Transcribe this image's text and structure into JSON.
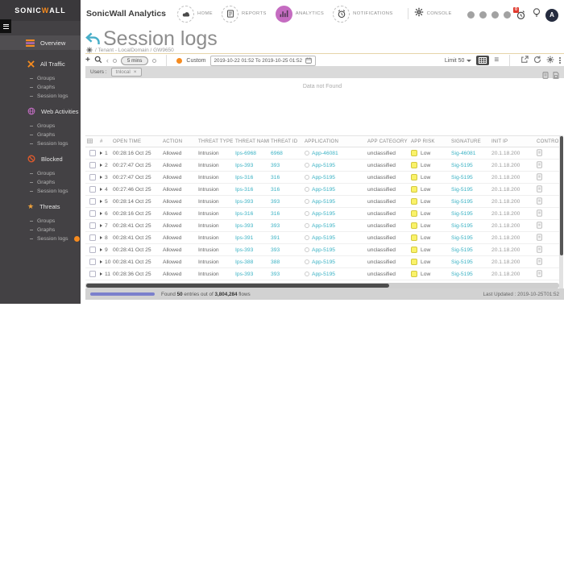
{
  "sidebar": {
    "logo": {
      "pre": "SONIC",
      "w": "W",
      "post": "ALL"
    },
    "overview_label": "Overview",
    "sections": [
      {
        "label": "All Traffic",
        "items": [
          "Groups",
          "Graphs",
          "Session logs"
        ]
      },
      {
        "label": "Web Activities",
        "items": [
          "Groups",
          "Graphs",
          "Session logs"
        ]
      },
      {
        "label": "Blocked",
        "items": [
          "Groups",
          "Graphs",
          "Session logs"
        ]
      },
      {
        "label": "Threats",
        "items": [
          "Groups",
          "Graphs",
          "Session logs"
        ],
        "active_item": "Session logs"
      }
    ]
  },
  "header": {
    "app_title": "SonicWall Analytics",
    "nav": [
      {
        "label": "HOME"
      },
      {
        "label": "REPORTS"
      },
      {
        "label": "ANALYTICS"
      },
      {
        "label": "NOTIFICATIONS"
      },
      {
        "label": "CONSOLE"
      }
    ],
    "notification_badge": "0",
    "avatar_initial": "A"
  },
  "page": {
    "title": "Session logs",
    "breadcrumb": "/ Tenant - LocalDomain / GW9650"
  },
  "toolbar": {
    "interval": "5 mins",
    "mode_label": "Custom",
    "date_range": "2019-10-22 01:52 To 2019-10-25 01:52",
    "limit_label": "Limit 50"
  },
  "filter_bar": {
    "label": "Users :",
    "chip": "tnlocal",
    "chip_remove": "×"
  },
  "empty_state": {
    "message": "Data not Found"
  },
  "table": {
    "columns": [
      "",
      "#",
      "OPEN TIME",
      "ACTION",
      "THREAT TYPE",
      "THREAT NAME",
      "THREAT ID",
      "APPLICATION",
      "APP CATEGORY",
      "APP RISK",
      "SIGNATURE",
      "INIT IP",
      "CONTRO..."
    ],
    "rows": [
      {
        "n": "1",
        "time": "00:28:16 Oct 25",
        "action": "Allowed",
        "threat_type": "Intrusion",
        "threat_name": "Ips-6968",
        "threat_id": "6968",
        "application": "App-46081",
        "app_category": "unclassified",
        "app_risk": "Low",
        "signature": "Sig-46081",
        "init_ip": "20.1.18.200"
      },
      {
        "n": "2",
        "time": "00:27:47 Oct 25",
        "action": "Allowed",
        "threat_type": "Intrusion",
        "threat_name": "Ips-393",
        "threat_id": "393",
        "application": "App-5195",
        "app_category": "unclassified",
        "app_risk": "Low",
        "signature": "Sig-5195",
        "init_ip": "20.1.18.200"
      },
      {
        "n": "3",
        "time": "00:27:47 Oct 25",
        "action": "Allowed",
        "threat_type": "Intrusion",
        "threat_name": "Ips-316",
        "threat_id": "316",
        "application": "App-5195",
        "app_category": "unclassified",
        "app_risk": "Low",
        "signature": "Sig-5195",
        "init_ip": "20.1.18.200"
      },
      {
        "n": "4",
        "time": "00:27:46 Oct 25",
        "action": "Allowed",
        "threat_type": "Intrusion",
        "threat_name": "Ips-316",
        "threat_id": "316",
        "application": "App-5195",
        "app_category": "unclassified",
        "app_risk": "Low",
        "signature": "Sig-5195",
        "init_ip": "20.1.18.200"
      },
      {
        "n": "5",
        "time": "00:28:14 Oct 25",
        "action": "Allowed",
        "threat_type": "Intrusion",
        "threat_name": "Ips-393",
        "threat_id": "393",
        "application": "App-5195",
        "app_category": "unclassified",
        "app_risk": "Low",
        "signature": "Sig-5195",
        "init_ip": "20.1.18.200"
      },
      {
        "n": "6",
        "time": "00:28:16 Oct 25",
        "action": "Allowed",
        "threat_type": "Intrusion",
        "threat_name": "Ips-316",
        "threat_id": "316",
        "application": "App-5195",
        "app_category": "unclassified",
        "app_risk": "Low",
        "signature": "Sig-5195",
        "init_ip": "20.1.18.200"
      },
      {
        "n": "7",
        "time": "00:28:41 Oct 25",
        "action": "Allowed",
        "threat_type": "Intrusion",
        "threat_name": "Ips-393",
        "threat_id": "393",
        "application": "App-5195",
        "app_category": "unclassified",
        "app_risk": "Low",
        "signature": "Sig-5195",
        "init_ip": "20.1.18.200"
      },
      {
        "n": "8",
        "time": "00:28:41 Oct 25",
        "action": "Allowed",
        "threat_type": "Intrusion",
        "threat_name": "Ips-391",
        "threat_id": "391",
        "application": "App-5195",
        "app_category": "unclassified",
        "app_risk": "Low",
        "signature": "Sig-5195",
        "init_ip": "20.1.18.200"
      },
      {
        "n": "9",
        "time": "00:28:41 Oct 25",
        "action": "Allowed",
        "threat_type": "Intrusion",
        "threat_name": "Ips-393",
        "threat_id": "393",
        "application": "App-5195",
        "app_category": "unclassified",
        "app_risk": "Low",
        "signature": "Sig-5195",
        "init_ip": "20.1.18.200"
      },
      {
        "n": "10",
        "time": "00:28:41 Oct 25",
        "action": "Allowed",
        "threat_type": "Intrusion",
        "threat_name": "Ips-388",
        "threat_id": "388",
        "application": "App-5195",
        "app_category": "unclassified",
        "app_risk": "Low",
        "signature": "Sig-5195",
        "init_ip": "20.1.18.200"
      },
      {
        "n": "11",
        "time": "00:28:36 Oct 25",
        "action": "Allowed",
        "threat_type": "Intrusion",
        "threat_name": "Ips-393",
        "threat_id": "393",
        "application": "App-5195",
        "app_category": "unclassified",
        "app_risk": "Low",
        "signature": "Sig-5195",
        "init_ip": "20.1.18.200"
      }
    ]
  },
  "footer": {
    "found_label": "Found ",
    "entries": "50",
    "of_label": " entries out of ",
    "total": "3,804,284",
    "flows_label": " flows",
    "last_updated": "Last Updated : 2019-10-25T01:52"
  }
}
